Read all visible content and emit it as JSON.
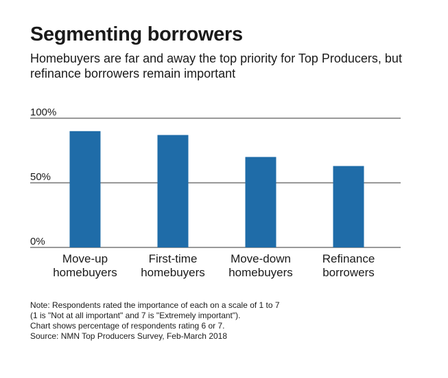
{
  "title": "Segmenting borrowers",
  "subtitle": "Homebuyers are far and away the top priority for Top Producers, but refinance borrowers remain important",
  "notes": [
    "Note: Respondents rated the importance of each on a scale of 1 to 7",
    "(1 is \"Not at all important\" and 7 is \"Extremely important\").",
    "Chart shows percentage of respondents rating 6 or 7.",
    "Source: NMN Top Producers Survey, Feb-March 2018"
  ],
  "colors": {
    "bar": "#1f6ca8",
    "grid": "#333333",
    "text": "#1a1a1a"
  },
  "chart_data": {
    "type": "bar",
    "categories": [
      [
        "Move-up",
        "homebuyers"
      ],
      [
        "First-time",
        "homebuyers"
      ],
      [
        "Move-down",
        "homebuyers"
      ],
      [
        "Refinance",
        "borrowers"
      ]
    ],
    "values": [
      90,
      87,
      70,
      63
    ],
    "ylim": [
      0,
      100
    ],
    "yticks": [
      0,
      50,
      100
    ],
    "ytick_labels": [
      "0%",
      "50%",
      "100%"
    ],
    "grid": true
  }
}
